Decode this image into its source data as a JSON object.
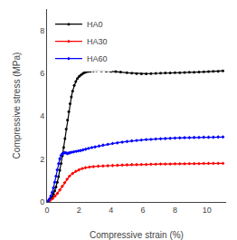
{
  "chart_data": {
    "type": "line",
    "xlabel": "Compressive strain (%)",
    "ylabel": "Compressive stress (MPa)",
    "xlim": [
      0,
      11.2
    ],
    "ylim": [
      0,
      9.0
    ],
    "xticks": [
      0,
      2,
      4,
      6,
      8,
      10
    ],
    "yticks": [
      0,
      2,
      4,
      6,
      8
    ],
    "legend": "upper left",
    "grid": false,
    "series": [
      {
        "name": "HA0",
        "color": "#000000",
        "marker": "circle",
        "x": [
          0,
          0.08,
          0.16,
          0.24,
          0.32,
          0.4,
          0.48,
          0.56,
          0.64,
          0.72,
          0.8,
          0.88,
          0.96,
          1.04,
          1.12,
          1.2,
          1.28,
          1.36,
          1.44,
          1.52,
          1.6,
          1.7,
          1.8,
          1.9,
          2.0,
          2.1,
          2.2,
          2.3,
          2.4,
          2.55,
          2.7,
          2.9,
          3.1,
          3.4,
          3.7,
          4.0,
          4.3,
          4.6,
          5.0,
          5.3,
          5.6,
          5.9,
          6.2,
          6.5,
          6.8,
          7.1,
          7.4,
          7.7,
          8.0,
          8.3,
          8.6,
          8.9,
          9.2,
          9.5,
          9.8,
          10.1,
          10.4,
          10.7,
          11.0
        ],
        "values": [
          0,
          0.04,
          0.09,
          0.16,
          0.25,
          0.37,
          0.52,
          0.7,
          0.92,
          1.18,
          1.48,
          1.8,
          2.16,
          2.55,
          2.96,
          3.4,
          3.82,
          4.22,
          4.58,
          4.9,
          5.18,
          5.44,
          5.62,
          5.76,
          5.85,
          5.92,
          5.97,
          6.02,
          6.05,
          6.08,
          6.1,
          6.12,
          6.13,
          6.12,
          6.11,
          6.09,
          6.08,
          6.06,
          6.03,
          6.01,
          5.99,
          5.98,
          5.98,
          5.99,
          6.0,
          6.01,
          6.02,
          6.02,
          6.03,
          6.03,
          6.04,
          6.05,
          6.05,
          6.06,
          6.07,
          6.08,
          6.09,
          6.1,
          6.12
        ]
      },
      {
        "name": "HA30",
        "color": "#ff0000",
        "marker": "diamond",
        "x": [
          0,
          0.1,
          0.2,
          0.35,
          0.5,
          0.65,
          0.8,
          0.95,
          1.1,
          1.25,
          1.4,
          1.6,
          1.8,
          2.0,
          2.2,
          2.4,
          2.65,
          2.9,
          3.2,
          3.5,
          3.8,
          4.1,
          4.4,
          4.7,
          5.0,
          5.3,
          5.6,
          5.9,
          6.2,
          6.5,
          6.8,
          7.1,
          7.4,
          7.7,
          8.0,
          8.3,
          8.6,
          8.9,
          9.2,
          9.5,
          9.8,
          10.1,
          10.4,
          10.7,
          11.0
        ],
        "values": [
          0,
          0.03,
          0.08,
          0.16,
          0.27,
          0.4,
          0.56,
          0.73,
          0.9,
          1.06,
          1.2,
          1.33,
          1.43,
          1.5,
          1.56,
          1.6,
          1.63,
          1.65,
          1.67,
          1.68,
          1.69,
          1.7,
          1.71,
          1.72,
          1.73,
          1.74,
          1.74,
          1.75,
          1.75,
          1.76,
          1.76,
          1.77,
          1.77,
          1.77,
          1.78,
          1.78,
          1.78,
          1.79,
          1.79,
          1.79,
          1.8,
          1.8,
          1.8,
          1.8,
          1.8
        ]
      },
      {
        "name": "HA60",
        "color": "#0000ff",
        "marker": "diamond",
        "x": [
          0,
          0.08,
          0.16,
          0.24,
          0.32,
          0.4,
          0.48,
          0.56,
          0.64,
          0.72,
          0.8,
          0.88,
          0.96,
          1.04,
          1.12,
          1.2,
          1.28,
          1.36,
          1.44,
          1.55,
          1.68,
          1.82,
          1.96,
          2.1,
          2.25,
          2.42,
          2.6,
          2.8,
          3.0,
          3.25,
          3.5,
          3.8,
          4.1,
          4.4,
          4.7,
          5.0,
          5.3,
          5.6,
          5.9,
          6.2,
          6.5,
          6.8,
          7.1,
          7.4,
          7.7,
          8.0,
          8.3,
          8.6,
          8.9,
          9.2,
          9.5,
          9.8,
          10.1,
          10.4,
          10.7,
          11.0
        ],
        "values": [
          0,
          0.06,
          0.15,
          0.28,
          0.45,
          0.66,
          0.92,
          1.2,
          1.5,
          1.78,
          2.02,
          2.18,
          2.25,
          2.28,
          2.3,
          2.28,
          2.26,
          2.28,
          2.3,
          2.32,
          2.34,
          2.36,
          2.38,
          2.4,
          2.43,
          2.46,
          2.5,
          2.54,
          2.57,
          2.61,
          2.65,
          2.69,
          2.73,
          2.76,
          2.79,
          2.82,
          2.85,
          2.87,
          2.89,
          2.91,
          2.92,
          2.94,
          2.95,
          2.96,
          2.97,
          2.98,
          2.99,
          3.0,
          3.0,
          3.01,
          3.01,
          3.02,
          3.02,
          3.02,
          3.03,
          3.03
        ]
      }
    ]
  }
}
